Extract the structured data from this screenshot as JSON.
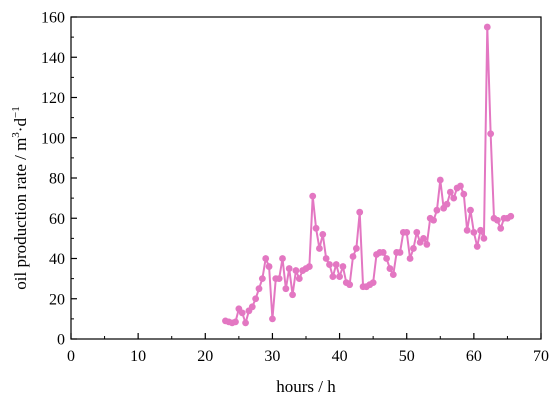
{
  "chart_data": {
    "type": "line",
    "xlabel": "hours / h",
    "ylabel_parts": [
      "oil production rate / m",
      "3",
      "·d",
      "−1"
    ],
    "xlim": [
      0,
      70
    ],
    "ylim": [
      0,
      160
    ],
    "xticks": [
      0,
      10,
      20,
      30,
      40,
      50,
      60,
      70
    ],
    "yticks": [
      0,
      20,
      40,
      60,
      80,
      100,
      120,
      140,
      160
    ],
    "grid": false,
    "color": "#e377c2",
    "series": [
      {
        "x": [
          23.0,
          23.5,
          24.0,
          24.5,
          25.0,
          25.5,
          26.0,
          26.5,
          27.0,
          27.5,
          28.0,
          28.5,
          29.0,
          29.5,
          30.0,
          30.5,
          31.0,
          31.5,
          32.0,
          32.5,
          33.0,
          33.5,
          34.0,
          34.5,
          35.0,
          35.5,
          36.0,
          36.5,
          37.0,
          37.5,
          38.0,
          38.5,
          39.0,
          39.5,
          40.0,
          40.5,
          41.0,
          41.5,
          42.0,
          42.5,
          43.0,
          43.5,
          44.0,
          44.5,
          45.0,
          45.5,
          46.0,
          46.5,
          47.0,
          47.5,
          48.0,
          48.5,
          49.0,
          49.5,
          50.0,
          50.5,
          51.0,
          51.5,
          52.0,
          52.5,
          53.0,
          53.5,
          54.0,
          54.5,
          55.0,
          55.5,
          56.0,
          56.5,
          57.0,
          57.5,
          58.0,
          58.5,
          59.0,
          59.5,
          60.0,
          60.5,
          61.0,
          61.5,
          62.0,
          62.5,
          63.0,
          63.5,
          64.0,
          64.5,
          65.0,
          65.5
        ],
        "y": [
          9,
          8.5,
          8,
          8.5,
          15,
          13,
          8,
          14,
          16,
          20,
          25,
          30,
          40,
          36,
          10,
          30,
          30,
          40,
          25,
          35,
          22,
          34,
          30,
          34,
          35,
          36,
          71,
          55,
          45,
          52,
          40,
          37,
          31,
          37,
          31,
          36,
          28,
          27,
          41,
          45,
          63,
          26,
          26,
          27,
          28,
          42,
          43,
          43,
          40,
          35,
          32,
          43,
          43,
          53,
          53,
          40,
          45,
          53,
          48,
          50,
          47,
          60,
          59,
          64,
          79,
          65,
          67,
          73,
          70,
          75,
          76,
          72,
          54,
          64,
          53,
          46,
          54,
          50,
          155,
          102,
          60,
          59,
          55,
          60,
          60,
          61
        ]
      }
    ]
  }
}
